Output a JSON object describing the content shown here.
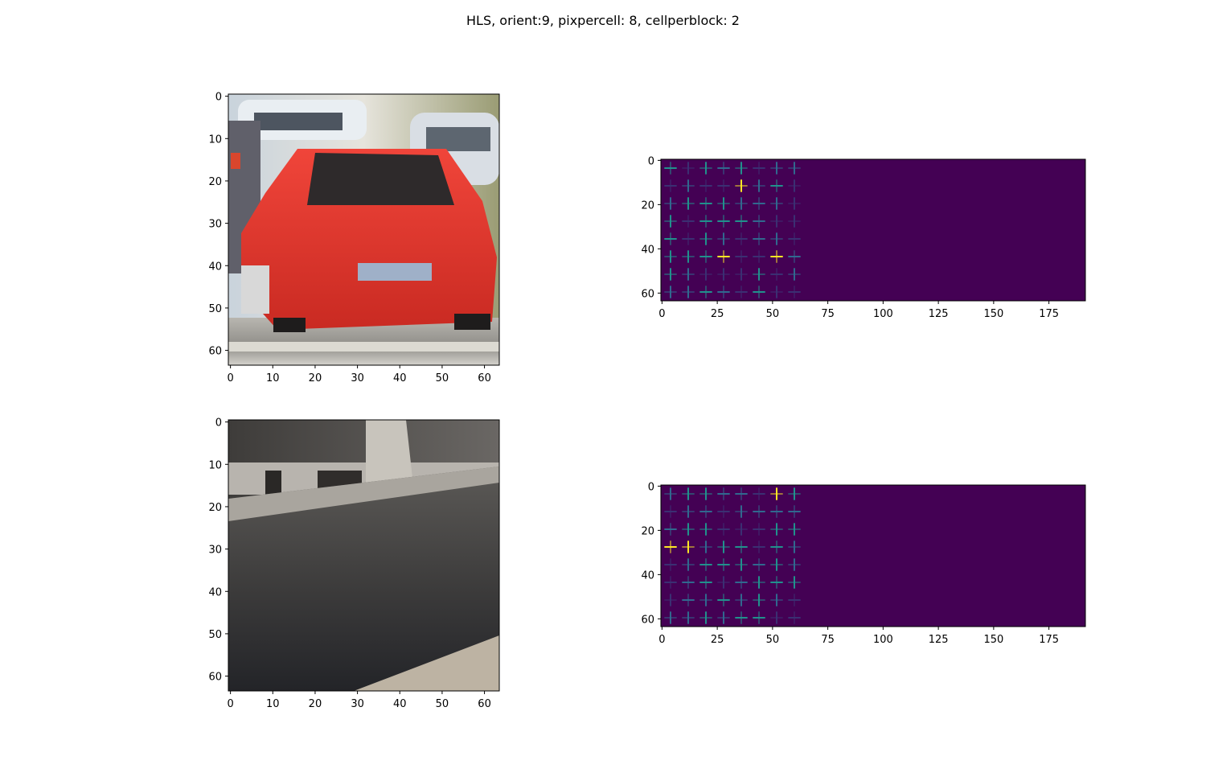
{
  "figure": {
    "title": "HLS, orient:9, pixpercell: 8, cellperblock: 2"
  },
  "colors": {
    "background": "#ffffff",
    "hog_background": "#440154",
    "hog_low": "#31688e",
    "hog_mid": "#21918c",
    "hog_high": "#fde725",
    "car_body": "#e0352b",
    "wall_gray": "#5a5855"
  },
  "chart_data": [
    {
      "type": "heatmap",
      "panel": "car image",
      "image_size": [
        64,
        64
      ],
      "xlim": [
        0,
        64
      ],
      "ylim": [
        64,
        0
      ],
      "xticks": [
        0,
        10,
        20,
        30,
        40,
        50,
        60
      ],
      "yticks": [
        0,
        10,
        20,
        30,
        40,
        50,
        60
      ],
      "xtick_labels": [
        "0",
        "10",
        "20",
        "30",
        "40",
        "50",
        "60"
      ],
      "ytick_labels": [
        "0",
        "10",
        "20",
        "30",
        "40",
        "50",
        "60"
      ],
      "grid": false
    },
    {
      "type": "heatmap",
      "panel": "car hog",
      "image_size": [
        192,
        64
      ],
      "xlim": [
        0,
        192
      ],
      "ylim": [
        64,
        0
      ],
      "xticks": [
        0,
        25,
        50,
        75,
        100,
        125,
        150,
        175
      ],
      "yticks": [
        0,
        20,
        40,
        60
      ],
      "xtick_labels": [
        "0",
        "25",
        "50",
        "75",
        "100",
        "125",
        "150",
        "175"
      ],
      "ytick_labels": [
        "0",
        "20",
        "40",
        "60"
      ],
      "colormap": "viridis",
      "grid": false
    },
    {
      "type": "heatmap",
      "panel": "notcar image",
      "image_size": [
        64,
        64
      ],
      "xlim": [
        0,
        64
      ],
      "ylim": [
        64,
        0
      ],
      "xticks": [
        0,
        10,
        20,
        30,
        40,
        50,
        60
      ],
      "yticks": [
        0,
        10,
        20,
        30,
        40,
        50,
        60
      ],
      "xtick_labels": [
        "0",
        "10",
        "20",
        "30",
        "40",
        "50",
        "60"
      ],
      "ytick_labels": [
        "0",
        "10",
        "20",
        "30",
        "40",
        "50",
        "60"
      ],
      "grid": false
    },
    {
      "type": "heatmap",
      "panel": "notcar hog",
      "image_size": [
        192,
        64
      ],
      "xlim": [
        0,
        192
      ],
      "ylim": [
        64,
        0
      ],
      "xticks": [
        0,
        25,
        50,
        75,
        100,
        125,
        150,
        175
      ],
      "yticks": [
        0,
        20,
        40,
        60
      ],
      "xtick_labels": [
        "0",
        "25",
        "50",
        "75",
        "100",
        "125",
        "150",
        "175"
      ],
      "ytick_labels": [
        "0",
        "20",
        "40",
        "60"
      ],
      "colormap": "viridis",
      "grid": false
    }
  ]
}
